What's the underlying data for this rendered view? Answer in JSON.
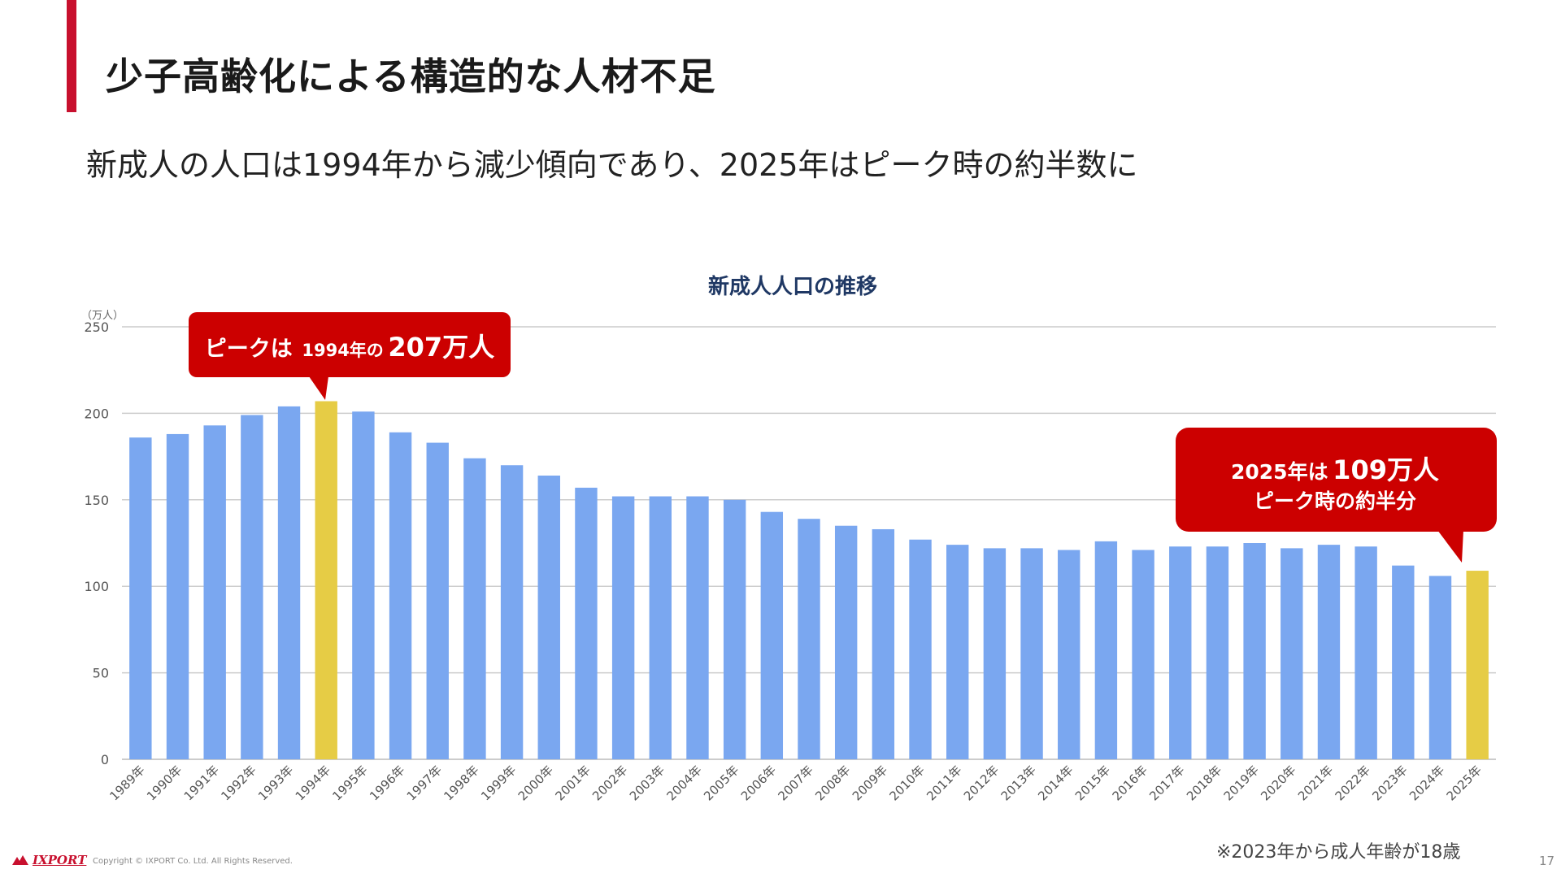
{
  "slide": {
    "title": "少子高齢化による構造的な人材不足",
    "subtitle": "新成人の人口は1994年から減少傾向であり、2025年はピーク時の約半数に",
    "footnote": "※2023年から成人年齢が18歳",
    "logo_text": "IXPORT",
    "copyright": "Copyright © IXPORT Co. Ltd. All Rights Reserved.",
    "page_number": "17",
    "accent_color": "#c8102e"
  },
  "chart_data": {
    "type": "bar",
    "title": "新成人人口の推移",
    "unit_label": "（万人）",
    "ylim": [
      0,
      250
    ],
    "y_ticks": [
      "0",
      "50",
      "100",
      "150",
      "200",
      "250"
    ],
    "grid": true,
    "categories": [
      "1989年",
      "1990年",
      "1991年",
      "1992年",
      "1993年",
      "1994年",
      "1995年",
      "1996年",
      "1997年",
      "1998年",
      "1999年",
      "2000年",
      "2001年",
      "2002年",
      "2003年",
      "2004年",
      "2005年",
      "2006年",
      "2007年",
      "2008年",
      "2009年",
      "2010年",
      "2011年",
      "2012年",
      "2013年",
      "2014年",
      "2015年",
      "2016年",
      "2017年",
      "2018年",
      "2019年",
      "2020年",
      "2021年",
      "2022年",
      "2023年",
      "2024年",
      "2025年"
    ],
    "values": [
      186,
      188,
      193,
      199,
      204,
      207,
      201,
      189,
      183,
      174,
      170,
      164,
      157,
      152,
      152,
      152,
      150,
      143,
      139,
      135,
      133,
      127,
      124,
      122,
      122,
      121,
      126,
      121,
      123,
      123,
      125,
      122,
      124,
      123,
      112,
      106,
      109
    ],
    "bar_color": "#7aa7f0",
    "highlight_color": "#e6cc45",
    "highlight_categories": [
      "1994年",
      "2025年"
    ],
    "callouts": [
      {
        "category": "1994年",
        "part1": "ピークは",
        "part2": "1994年の",
        "part3": "207万人",
        "color": "#cc0000"
      },
      {
        "category": "2025年",
        "line1_a": "2025年は",
        "line1_b": "109万人",
        "line2": "ピーク時の約半分",
        "color": "#cc0000"
      }
    ]
  }
}
